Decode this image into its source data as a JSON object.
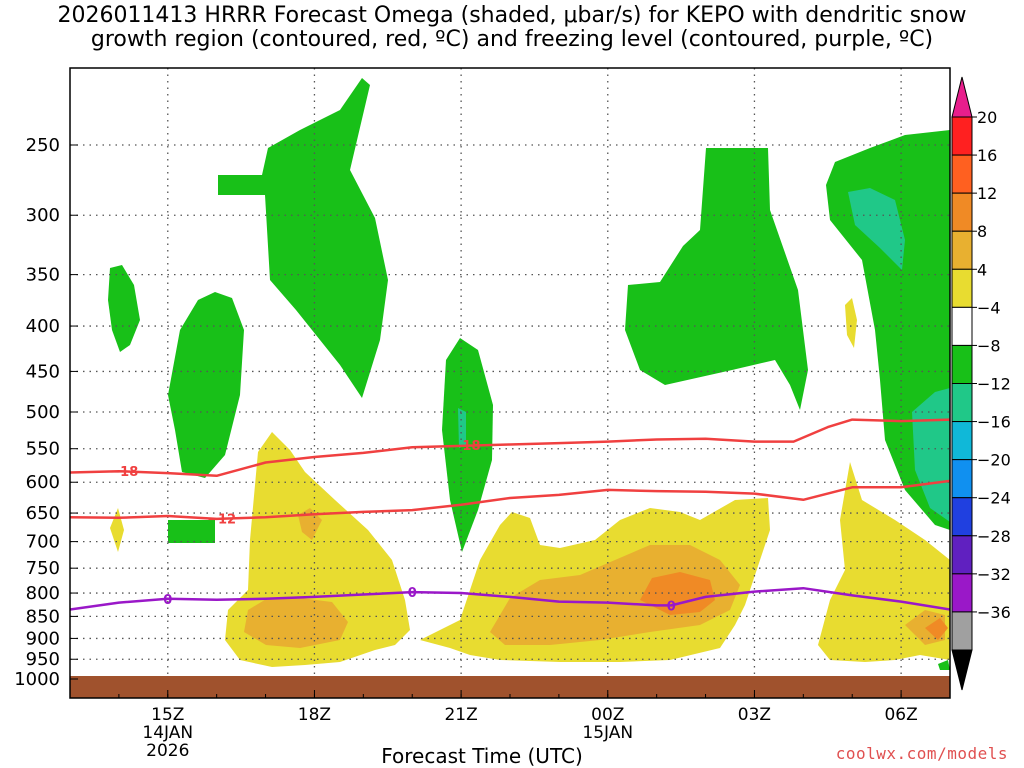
{
  "chart_data": {
    "type": "contour",
    "title_line1": "2026011413 HRRR Forecast Omega (shaded, μbar/s) for KEPO with dendritic snow",
    "title_line2": "growth region (contoured, red, ºC) and freezing level (contoured, purple, ºC)",
    "xlabel": "Forecast Time (UTC)",
    "credit": "coolwx.com/models",
    "x_ticks": [
      {
        "label": "15Z",
        "hour": 15,
        "sub": [
          "14JAN",
          "2026"
        ]
      },
      {
        "label": "18Z",
        "hour": 18,
        "sub": []
      },
      {
        "label": "21Z",
        "hour": 21,
        "sub": []
      },
      {
        "label": "00Z",
        "hour": 24,
        "sub": [
          "15JAN"
        ]
      },
      {
        "label": "03Z",
        "hour": 27,
        "sub": []
      },
      {
        "label": "06Z",
        "hour": 30,
        "sub": []
      }
    ],
    "x_range_hours": [
      13,
      31
    ],
    "y_ticks": [
      250,
      300,
      350,
      400,
      450,
      500,
      550,
      600,
      650,
      700,
      750,
      800,
      850,
      900,
      950,
      1000
    ],
    "y_range_hpa": [
      200,
      1010
    ],
    "colorbar": {
      "labels": [
        "20",
        "16",
        "12",
        "8",
        "4",
        "−4",
        "−8",
        "−12",
        "−16",
        "−20",
        "−24",
        "−28",
        "−32",
        "−36"
      ],
      "colors": [
        "#ff2020",
        "#ff6020",
        "#f08a25",
        "#e8b030",
        "#e8dc30",
        "#ffffff",
        "#18c018",
        "#20c888",
        "#10b8d8",
        "#1090f0",
        "#2040e0",
        "#6020c0",
        "#9a18c8",
        "#a0a0a0"
      ],
      "top_arrow_color": "#e81e8c",
      "bottom_arrow_color": "#000000"
    },
    "contours": [
      {
        "name": "dendritic-minus18",
        "label": "−18",
        "color": "#f04040",
        "points": [
          [
            13,
            585
          ],
          [
            14,
            583
          ],
          [
            15,
            586
          ],
          [
            16,
            590
          ],
          [
            17,
            570
          ],
          [
            18,
            562
          ],
          [
            19,
            556
          ],
          [
            20,
            548
          ],
          [
            21,
            546
          ],
          [
            22,
            544
          ],
          [
            23,
            542
          ],
          [
            24,
            540
          ],
          [
            25,
            537
          ],
          [
            26,
            536
          ],
          [
            27,
            540
          ],
          [
            27.8,
            540
          ],
          [
            28.5,
            520
          ],
          [
            29,
            510
          ],
          [
            30,
            512
          ],
          [
            31,
            510
          ]
        ],
        "label_positions": [
          [
            14.1,
            583
          ],
          [
            21.1,
            545
          ]
        ]
      },
      {
        "name": "dendritic-minus12",
        "label": "−12",
        "color": "#f04040",
        "points": [
          [
            13,
            657
          ],
          [
            14,
            658
          ],
          [
            15,
            655
          ],
          [
            16,
            660
          ],
          [
            17,
            657
          ],
          [
            18,
            652
          ],
          [
            19,
            648
          ],
          [
            20,
            645
          ],
          [
            21,
            636
          ],
          [
            22,
            625
          ],
          [
            23,
            620
          ],
          [
            24,
            612
          ],
          [
            25,
            614
          ],
          [
            26,
            615
          ],
          [
            27,
            618
          ],
          [
            28,
            628
          ],
          [
            29,
            608
          ],
          [
            30,
            608
          ],
          [
            31,
            598
          ]
        ],
        "label_positions": [
          [
            16.1,
            659
          ]
        ]
      },
      {
        "name": "freezing-level-0",
        "label": "0",
        "color": "#9a18c8",
        "points": [
          [
            13,
            835
          ],
          [
            14,
            820
          ],
          [
            15,
            812
          ],
          [
            16,
            814
          ],
          [
            17,
            812
          ],
          [
            18,
            808
          ],
          [
            19,
            803
          ],
          [
            20,
            798
          ],
          [
            21,
            800
          ],
          [
            22,
            808
          ],
          [
            23,
            818
          ],
          [
            24,
            820
          ],
          [
            25,
            826
          ],
          [
            25.3,
            826
          ],
          [
            26,
            808
          ],
          [
            27,
            797
          ],
          [
            28,
            790
          ],
          [
            29,
            805
          ],
          [
            30,
            818
          ],
          [
            31,
            835
          ]
        ],
        "label_positions": [
          [
            15,
            812
          ],
          [
            20,
            798
          ],
          [
            25.3,
            826
          ]
        ]
      }
    ]
  }
}
